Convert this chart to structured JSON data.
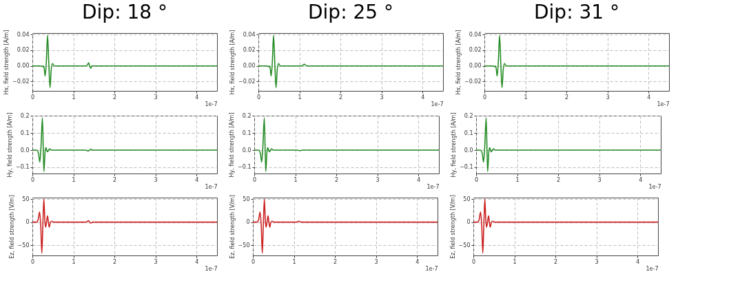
{
  "chart_data": [
    {
      "type": "line",
      "title": "Dip: 18 °",
      "xlabel": "1e-7",
      "ylabel": "Hx, field strength [A/m]",
      "grid": true,
      "xlim": [
        0,
        4.5
      ],
      "xticks": [
        0,
        1,
        2,
        3,
        4
      ],
      "ylim": [
        -0.032,
        0.042
      ],
      "yticks": [
        {
          "value": -0.02,
          "label": "−0.02"
        },
        {
          "value": 0,
          "label": "0.00"
        },
        {
          "value": 0.02,
          "label": "0.02"
        },
        {
          "value": 0.04,
          "label": "0.04"
        }
      ],
      "x": [
        0,
        0.2,
        0.25,
        0.27,
        0.29,
        0.31,
        0.34,
        0.37,
        0.4,
        0.43,
        0.46,
        0.49,
        0.53,
        0.6,
        1.3,
        1.35,
        1.37,
        1.395,
        1.42,
        1.45,
        1.5,
        4.5
      ],
      "series": [
        {
          "color": "#268c26",
          "values": [
            0,
            0,
            -0.001,
            0,
            -0.004,
            -0.013,
            0.005,
            0.039,
            0.003,
            -0.028,
            -0.004,
            0.003,
            0,
            0,
            0,
            0.002,
            0.004,
            0,
            -0.003,
            0,
            0,
            0
          ]
        }
      ]
    },
    {
      "type": "line",
      "title": "Dip: 25 °",
      "xlabel": "1e-7",
      "ylabel": "Hx, field strength [A/m]",
      "grid": true,
      "xlim": [
        0,
        4.5
      ],
      "xticks": [
        0,
        1,
        2,
        3,
        4
      ],
      "ylim": [
        -0.032,
        0.042
      ],
      "yticks": [
        {
          "value": -0.02,
          "label": "−0.02"
        },
        {
          "value": 0,
          "label": "0.00"
        },
        {
          "value": 0.02,
          "label": "0.02"
        },
        {
          "value": 0.04,
          "label": "0.04"
        }
      ],
      "x": [
        0,
        0.2,
        0.25,
        0.27,
        0.29,
        0.31,
        0.34,
        0.37,
        0.4,
        0.43,
        0.46,
        0.49,
        0.53,
        0.6,
        1.05,
        1.12,
        1.18,
        4.5
      ],
      "series": [
        {
          "color": "#268c26",
          "values": [
            0,
            0,
            -0.001,
            0,
            -0.004,
            -0.013,
            0.005,
            0.039,
            0.003,
            -0.028,
            -0.004,
            0.003,
            0,
            0,
            0,
            0.002,
            0,
            0
          ]
        }
      ]
    },
    {
      "type": "line",
      "title": "Dip: 31 °",
      "xlabel": "1e-7",
      "ylabel": "Hx, field strength [A/m]",
      "grid": true,
      "xlim": [
        0,
        4.5
      ],
      "xticks": [
        0,
        1,
        2,
        3,
        4
      ],
      "ylim": [
        -0.032,
        0.042
      ],
      "yticks": [
        {
          "value": -0.02,
          "label": "−0.02"
        },
        {
          "value": 0,
          "label": "0.00"
        },
        {
          "value": 0.02,
          "label": "0.02"
        },
        {
          "value": 0.04,
          "label": "0.04"
        }
      ],
      "x": [
        0,
        0.2,
        0.25,
        0.27,
        0.29,
        0.31,
        0.34,
        0.37,
        0.4,
        0.43,
        0.46,
        0.49,
        0.53,
        0.6,
        4.5
      ],
      "series": [
        {
          "color": "#268c26",
          "values": [
            0,
            0,
            -0.001,
            0,
            -0.004,
            -0.013,
            0.005,
            0.039,
            0.003,
            -0.028,
            -0.004,
            0.003,
            0,
            0,
            0
          ]
        }
      ]
    },
    {
      "type": "line",
      "xlabel": "1e-7",
      "ylabel": "Hy, field strength [A/m]",
      "grid": true,
      "xlim": [
        0,
        4.5
      ],
      "xticks": [
        0,
        1,
        2,
        3,
        4
      ],
      "ylim": [
        -0.137,
        0.202
      ],
      "yticks": [
        {
          "value": -0.1,
          "label": "−0.1"
        },
        {
          "value": 0,
          "label": "0.0"
        },
        {
          "value": 0.1,
          "label": "0.1"
        },
        {
          "value": 0.2,
          "label": "0.2"
        }
      ],
      "x": [
        0,
        0.1,
        0.15,
        0.18,
        0.21,
        0.245,
        0.28,
        0.31,
        0.33,
        0.35,
        0.37,
        0.395,
        0.42,
        0.46,
        0.55,
        1.3,
        1.36,
        1.39,
        1.42,
        1.46,
        4.5
      ],
      "series": [
        {
          "color": "#268c26",
          "values": [
            0,
            0,
            -0.02,
            -0.07,
            0.02,
            0.19,
            -0.125,
            -0.01,
            0.015,
            0,
            -0.01,
            0,
            0.008,
            0,
            0,
            0,
            -0.005,
            0,
            0.005,
            0,
            0
          ]
        }
      ]
    },
    {
      "type": "line",
      "xlabel": "1e-7",
      "ylabel": "Hy, field strength [A/m]",
      "grid": true,
      "xlim": [
        0,
        4.5
      ],
      "xticks": [
        0,
        1,
        2,
        3,
        4
      ],
      "ylim": [
        -0.137,
        0.202
      ],
      "yticks": [
        {
          "value": -0.1,
          "label": "−0.1"
        },
        {
          "value": 0,
          "label": "0.0"
        },
        {
          "value": 0.1,
          "label": "0.1"
        },
        {
          "value": 0.2,
          "label": "0.2"
        }
      ],
      "x": [
        0,
        0.1,
        0.15,
        0.18,
        0.21,
        0.245,
        0.28,
        0.31,
        0.33,
        0.35,
        0.37,
        0.395,
        0.42,
        0.46,
        0.55,
        1.05,
        1.11,
        1.17,
        4.5
      ],
      "series": [
        {
          "color": "#268c26",
          "values": [
            0,
            0,
            -0.02,
            -0.07,
            0.02,
            0.19,
            -0.125,
            -0.01,
            0.015,
            0,
            -0.01,
            0,
            0.008,
            0,
            0,
            0,
            -0.003,
            0,
            0
          ]
        }
      ]
    },
    {
      "type": "line",
      "xlabel": "1e-7",
      "ylabel": "Hy, field strength [A/m]",
      "grid": true,
      "xlim": [
        0,
        4.5
      ],
      "xticks": [
        0,
        1,
        2,
        3,
        4
      ],
      "ylim": [
        -0.137,
        0.202
      ],
      "yticks": [
        {
          "value": -0.1,
          "label": "−0.1"
        },
        {
          "value": 0,
          "label": "0.0"
        },
        {
          "value": 0.1,
          "label": "0.1"
        },
        {
          "value": 0.2,
          "label": "0.2"
        }
      ],
      "x": [
        0,
        0.1,
        0.15,
        0.18,
        0.21,
        0.245,
        0.28,
        0.31,
        0.33,
        0.35,
        0.37,
        0.395,
        0.42,
        0.46,
        0.55,
        4.5
      ],
      "series": [
        {
          "color": "#268c26",
          "values": [
            0,
            0,
            -0.02,
            -0.07,
            0.02,
            0.19,
            -0.125,
            -0.01,
            0.015,
            0,
            -0.01,
            0,
            0.008,
            0,
            0,
            0
          ]
        }
      ]
    },
    {
      "type": "line",
      "xlabel": "1e-7",
      "ylabel": "Ez, field strength [V/m]",
      "grid": true,
      "xlim": [
        0,
        4.5
      ],
      "xticks": [
        0,
        1,
        2,
        3,
        4
      ],
      "ylim": [
        -72,
        53
      ],
      "yticks": [
        {
          "value": -50,
          "label": "−50"
        },
        {
          "value": 0,
          "label": "0"
        },
        {
          "value": 50,
          "label": "50"
        }
      ],
      "x": [
        0,
        0.1,
        0.14,
        0.175,
        0.205,
        0.23,
        0.255,
        0.28,
        0.3,
        0.32,
        0.345,
        0.37,
        0.39,
        0.41,
        0.44,
        0.47,
        0.52,
        1.3,
        1.37,
        1.395,
        1.42,
        1.47,
        4.5
      ],
      "series": [
        {
          "color": "#cc2222",
          "values": [
            0,
            0,
            5,
            22,
            -10,
            -67,
            -5,
            50,
            10,
            -11,
            0,
            14,
            0,
            -11,
            0,
            2,
            0,
            0,
            3,
            0,
            -2,
            0,
            0
          ]
        }
      ]
    },
    {
      "type": "line",
      "xlabel": "1e-7",
      "ylabel": "Ez, field strength [V/m]",
      "grid": true,
      "xlim": [
        0,
        4.5
      ],
      "xticks": [
        0,
        1,
        2,
        3,
        4
      ],
      "ylim": [
        -72,
        53
      ],
      "yticks": [
        {
          "value": -50,
          "label": "−50"
        },
        {
          "value": 0,
          "label": "0"
        },
        {
          "value": 50,
          "label": "50"
        }
      ],
      "x": [
        0,
        0.1,
        0.14,
        0.175,
        0.205,
        0.23,
        0.255,
        0.28,
        0.3,
        0.32,
        0.345,
        0.37,
        0.39,
        0.41,
        0.44,
        0.47,
        0.52,
        1.05,
        1.12,
        1.18,
        4.5
      ],
      "series": [
        {
          "color": "#cc2222",
          "values": [
            0,
            0,
            5,
            22,
            -10,
            -67,
            -5,
            50,
            10,
            -11,
            0,
            14,
            0,
            -11,
            0,
            2,
            0,
            0,
            2,
            0,
            0
          ]
        }
      ]
    },
    {
      "type": "line",
      "xlabel": "1e-7",
      "ylabel": "Ez, field strength [V/m]",
      "grid": true,
      "xlim": [
        0,
        4.5
      ],
      "xticks": [
        0,
        1,
        2,
        3,
        4
      ],
      "ylim": [
        -72,
        53
      ],
      "yticks": [
        {
          "value": -50,
          "label": "−50"
        },
        {
          "value": 0,
          "label": "0"
        },
        {
          "value": 50,
          "label": "50"
        }
      ],
      "x": [
        0,
        0.1,
        0.14,
        0.175,
        0.205,
        0.23,
        0.255,
        0.28,
        0.3,
        0.32,
        0.345,
        0.37,
        0.39,
        0.41,
        0.44,
        0.47,
        0.52,
        4.5
      ],
      "series": [
        {
          "color": "#cc2222",
          "values": [
            0,
            0,
            5,
            22,
            -10,
            -67,
            -5,
            50,
            10,
            -11,
            0,
            14,
            0,
            -11,
            0,
            2,
            0,
            0
          ]
        }
      ]
    }
  ]
}
